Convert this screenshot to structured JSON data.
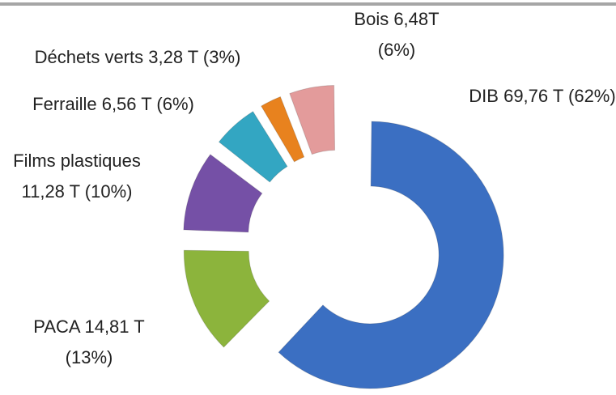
{
  "chart_data": {
    "type": "donut",
    "values": [
      69.76,
      14.81,
      11.28,
      6.56,
      3.28,
      6.48
    ],
    "value_labels": [
      "DIB 69,76 T (62%)",
      "PACA 14,81 T (13%)",
      "Films plastiques 11,28 T (10%)",
      "Ferraille 6,56 T (6%)",
      "Déchets verts 3,28 T (3%)",
      "Bois 6,48T (6%)"
    ],
    "colors": [
      "#3b6fc2",
      "#8cb43c",
      "#7550a6",
      "#33a6c2",
      "#e8821e",
      "#e39b9b"
    ]
  }
}
